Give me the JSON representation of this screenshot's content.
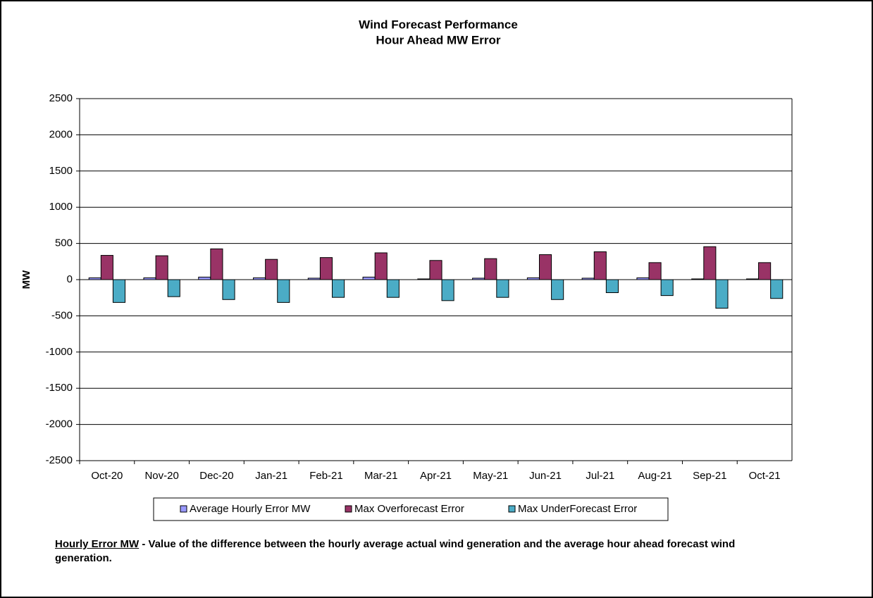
{
  "chart_data": {
    "type": "bar",
    "title": "Wind Forecast Performance",
    "subtitle": "Hour Ahead MW Error",
    "y_label": "MW",
    "categories": [
      "Oct-20",
      "Nov-20",
      "Dec-20",
      "Jan-21",
      "Feb-21",
      "Mar-21",
      "Apr-21",
      "May-21",
      "Jun-21",
      "Jul-21",
      "Aug-21",
      "Sep-21",
      "Oct-21"
    ],
    "series": [
      {
        "name": "Average Hourly Error MW",
        "color": "#9999ff",
        "values": [
          25,
          25,
          35,
          25,
          20,
          35,
          10,
          20,
          25,
          20,
          25,
          10,
          10
        ]
      },
      {
        "name": "Max Overforecast Error",
        "color": "#993366",
        "values": [
          335,
          330,
          425,
          280,
          305,
          370,
          265,
          290,
          345,
          385,
          235,
          455,
          235
        ]
      },
      {
        "name": "Max UnderForecast Error",
        "color": "#4bacc6",
        "values": [
          -315,
          -235,
          -275,
          -315,
          -245,
          -245,
          -290,
          -245,
          -275,
          -180,
          -220,
          -395,
          -260
        ]
      }
    ],
    "ylim": [
      -2500,
      2500
    ],
    "yticks": [
      -2500,
      -2000,
      -1500,
      -1000,
      -500,
      0,
      500,
      1000,
      1500,
      2000,
      2500
    ],
    "grid": true,
    "legend": "bottom"
  },
  "note": {
    "term": "Hourly Error MW",
    "text": " - Value of the difference between the hourly average actual wind generation and the average hour ahead forecast wind generation."
  }
}
